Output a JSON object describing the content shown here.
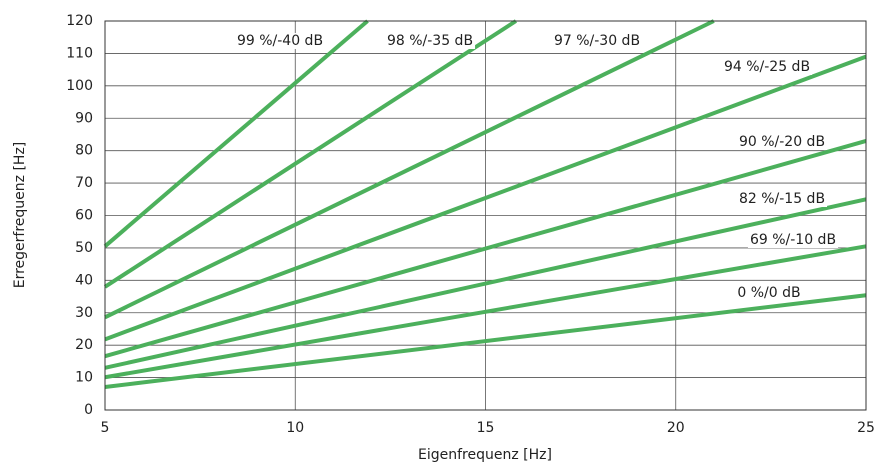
{
  "chart_data": {
    "type": "line",
    "x_label": "Eigenfrequenz [Hz]",
    "y_label": "Erregerfrequenz [Hz]",
    "xlim": [
      5,
      25
    ],
    "xticks": [
      5,
      10,
      15,
      20,
      25
    ],
    "ylim": [
      0,
      120
    ],
    "yticks": [
      0,
      10,
      20,
      30,
      40,
      50,
      60,
      70,
      80,
      90,
      100,
      110,
      120
    ],
    "grid": true,
    "color": "#4cb05c",
    "series": [
      {
        "name": "0 %/0 dB",
        "x": [
          5,
          25
        ],
        "values": [
          7.1,
          35.4
        ]
      },
      {
        "name": "69 %/-10 dB",
        "x": [
          5,
          25
        ],
        "values": [
          10.1,
          50.5
        ]
      },
      {
        "name": "82 %/-15 dB",
        "x": [
          5,
          25
        ],
        "values": [
          13,
          65
        ]
      },
      {
        "name": "90 %/-20 dB",
        "x": [
          5,
          25
        ],
        "values": [
          16.6,
          83
        ]
      },
      {
        "name": "94 %/-25 dB",
        "x": [
          5,
          25
        ],
        "values": [
          21.8,
          109
        ]
      },
      {
        "name": "97 %/-30 dB",
        "x": [
          5,
          21
        ],
        "values": [
          28.6,
          120
        ]
      },
      {
        "name": "98 %/-35 dB",
        "x": [
          5,
          15.8
        ],
        "values": [
          38,
          120
        ]
      },
      {
        "name": "99 %/-40 dB",
        "x": [
          5,
          11.9
        ],
        "values": [
          50.5,
          120
        ]
      }
    ]
  }
}
